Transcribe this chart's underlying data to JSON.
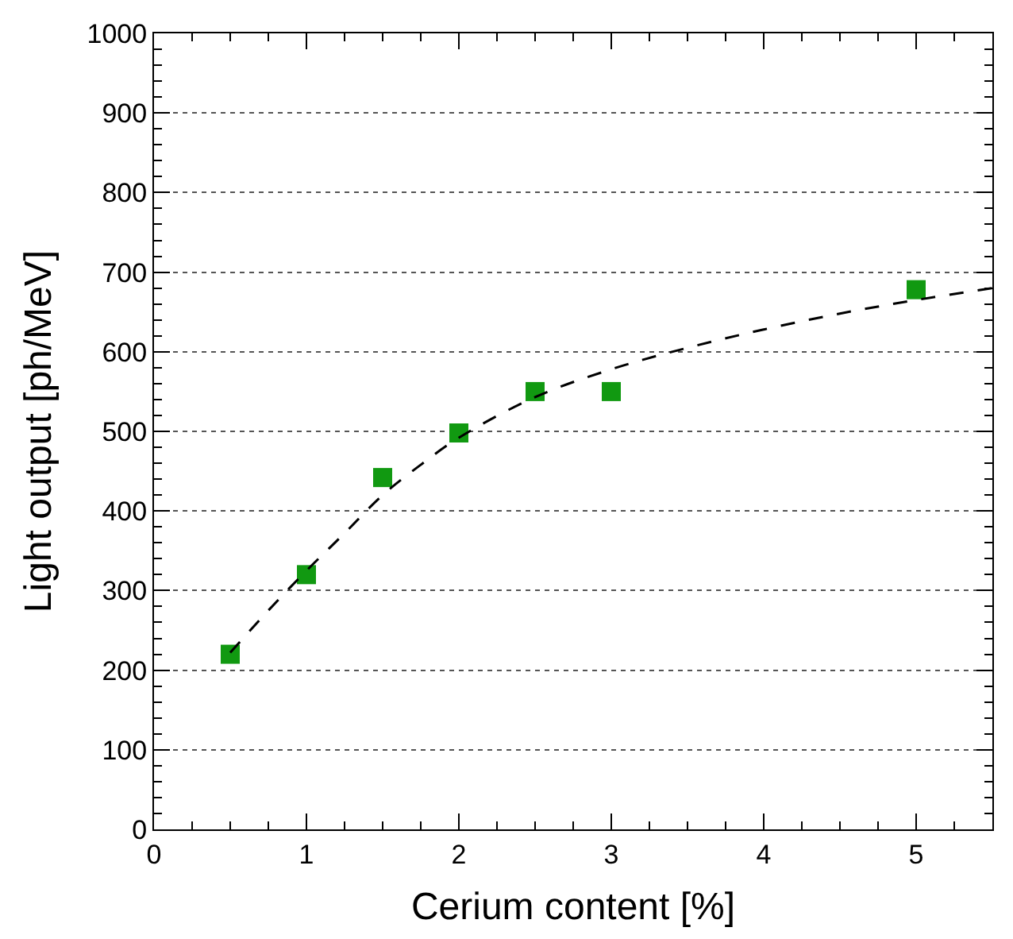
{
  "chart_data": {
    "type": "scatter",
    "xlabel": "Cerium content [%]",
    "ylabel": "Light output [ph/MeV]",
    "xlim": [
      0,
      5.5
    ],
    "xticks": [
      0,
      1,
      2,
      3,
      4,
      5
    ],
    "ylim": [
      0,
      1000
    ],
    "yticks": [
      0,
      100,
      200,
      300,
      400,
      500,
      600,
      700,
      800,
      900,
      1000
    ],
    "grid": "y",
    "legend": false,
    "series": [
      {
        "color": "#119911",
        "marker": "square",
        "x": [
          0.5,
          1,
          1.5,
          2,
          2.5,
          3,
          5
        ],
        "values": [
          220,
          320,
          442,
          498,
          550,
          550,
          678
        ]
      },
      {
        "type": "line",
        "color": "#000000",
        "line_style": "dashed",
        "marker": "none",
        "x": [
          0.5,
          0.75,
          1,
          1.25,
          1.5,
          1.75,
          2,
          2.5,
          3,
          3.5,
          4,
          4.5,
          5,
          5.5
        ],
        "values": [
          222,
          275,
          325,
          372,
          420,
          458,
          492,
          543,
          578,
          605,
          628,
          648,
          665,
          680
        ]
      }
    ]
  }
}
